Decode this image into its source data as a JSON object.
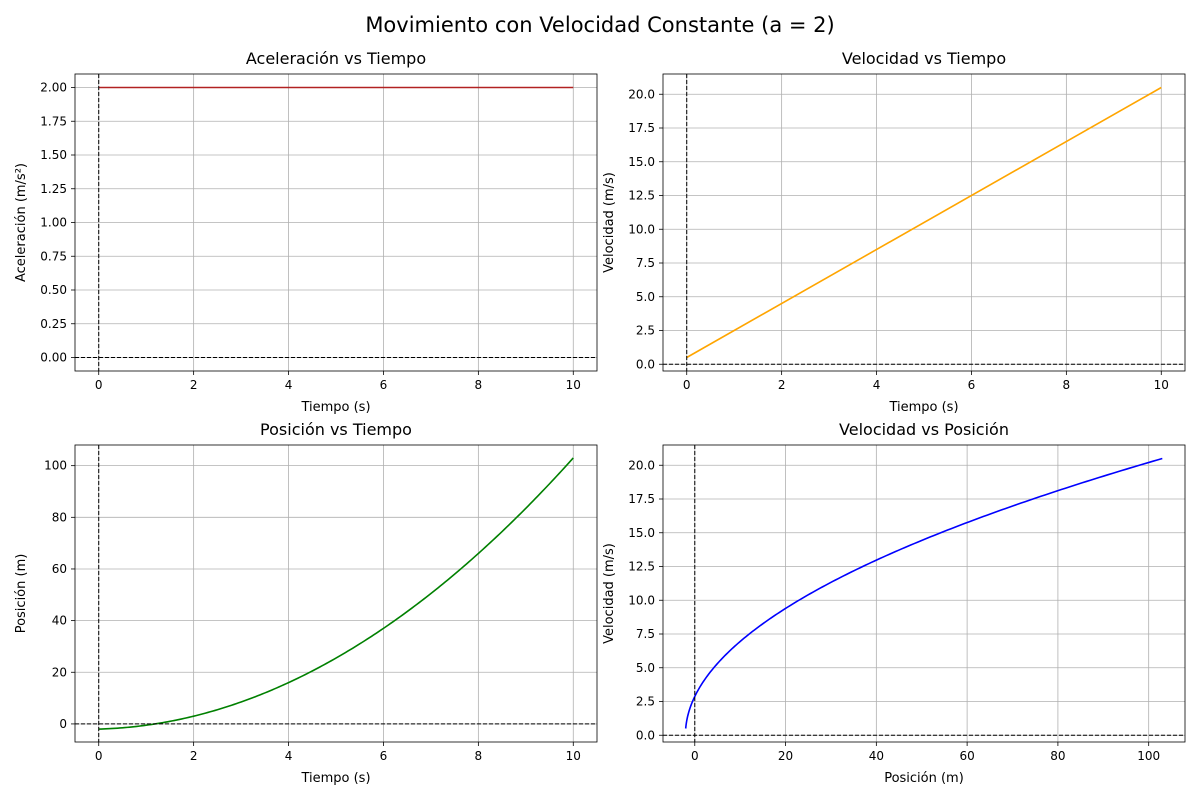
{
  "figure": {
    "title": "Movimiento con Velocidad Constante (a = 2)"
  },
  "chart_data": [
    {
      "type": "line",
      "title": "Aceleración vs Tiempo",
      "xlabel": "Tiempo (s)",
      "ylabel": "Aceleración (m/s²)",
      "xlim": [
        -0.5,
        10.5
      ],
      "ylim": [
        -0.1,
        2.1
      ],
      "xticks": [
        0,
        2,
        4,
        6,
        8,
        10
      ],
      "yticks": [
        0.0,
        0.25,
        0.5,
        0.75,
        1.0,
        1.25,
        1.5,
        1.75,
        2.0
      ],
      "ytick_format": 2,
      "grid": true,
      "reference_lines": {
        "x": 0,
        "y": 0,
        "style": "dashed",
        "color": "#000000"
      },
      "series": [
        {
          "color": "#b22222",
          "kind": "constant",
          "a": 2,
          "x_range": [
            0,
            10
          ]
        }
      ]
    },
    {
      "type": "line",
      "title": "Velocidad vs Tiempo",
      "xlabel": "Tiempo (s)",
      "ylabel": "Velocidad (m/s)",
      "xlim": [
        -0.5,
        10.5
      ],
      "ylim": [
        -0.5,
        21.5
      ],
      "xticks": [
        0,
        2,
        4,
        6,
        8,
        10
      ],
      "yticks": [
        0.0,
        2.5,
        5.0,
        7.5,
        10.0,
        12.5,
        15.0,
        17.5,
        20.0
      ],
      "ytick_format": 1,
      "grid": true,
      "reference_lines": {
        "x": 0,
        "y": 0,
        "style": "dashed",
        "color": "#000000"
      },
      "series": [
        {
          "color": "#ffa500",
          "kind": "linear",
          "v0": 0.5,
          "a": 2,
          "x_range": [
            0,
            10
          ]
        }
      ]
    },
    {
      "type": "line",
      "title": "Posición vs Tiempo",
      "xlabel": "Tiempo (s)",
      "ylabel": "Posición (m)",
      "xlim": [
        -0.5,
        10.5
      ],
      "ylim": [
        -7,
        108
      ],
      "xticks": [
        0,
        2,
        4,
        6,
        8,
        10
      ],
      "yticks": [
        0,
        20,
        40,
        60,
        80,
        100
      ],
      "ytick_format": 0,
      "grid": true,
      "reference_lines": {
        "x": 0,
        "y": 0,
        "style": "dashed",
        "color": "#000000"
      },
      "series": [
        {
          "color": "#008000",
          "kind": "quadratic",
          "x0": -2,
          "v0": 0.5,
          "a": 2,
          "x_range": [
            0,
            10
          ]
        }
      ]
    },
    {
      "type": "line",
      "title": "Velocidad vs Posición",
      "xlabel": "Posición (m)",
      "ylabel": "Velocidad (m/s)",
      "xlim": [
        -7,
        108
      ],
      "ylim": [
        -0.5,
        21.5
      ],
      "xticks": [
        0,
        20,
        40,
        60,
        80,
        100
      ],
      "yticks": [
        0.0,
        2.5,
        5.0,
        7.5,
        10.0,
        12.5,
        15.0,
        17.5,
        20.0
      ],
      "ytick_format": 1,
      "grid": true,
      "reference_lines": {
        "x": 0,
        "y": 0,
        "style": "dashed",
        "color": "#000000"
      },
      "series": [
        {
          "color": "#0000ff",
          "kind": "phase",
          "x0": -2,
          "v0": 0.5,
          "a": 2,
          "t_range": [
            0,
            10
          ]
        }
      ]
    }
  ]
}
